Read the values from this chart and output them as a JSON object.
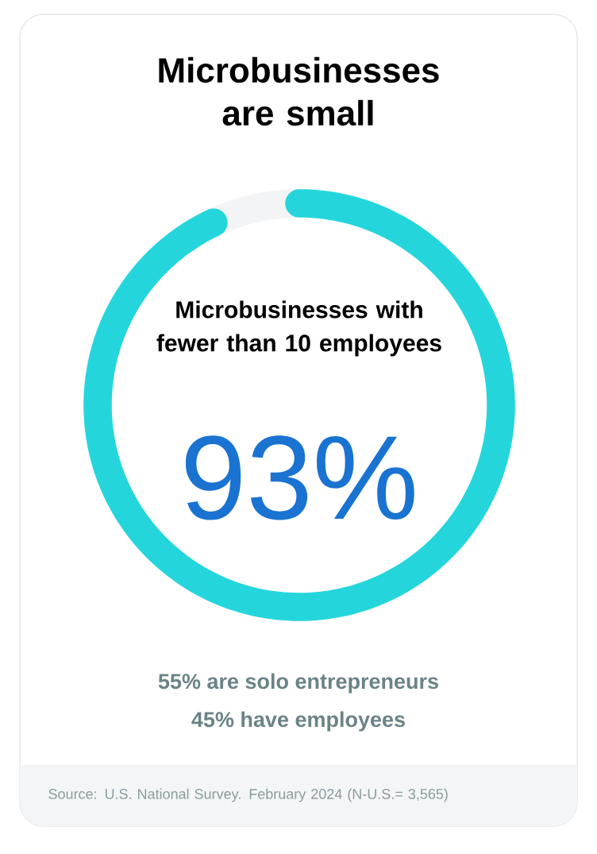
{
  "chart_data": {
    "type": "donut",
    "title": "Microbusinesses are small",
    "categories": [
      "Microbusinesses with fewer than 10 employees",
      null
    ],
    "values": [
      93,
      7
    ],
    "colors": [
      "#24d6dc",
      "#f3f4f6"
    ],
    "value_labels": [
      "93%",
      null
    ],
    "legend": false,
    "annotations": [
      "55% are solo entrepreneurs",
      "45% have employees",
      "Source: U.S. National Survey. February 2024 (N-U.S.= 3,565)"
    ]
  }
}
